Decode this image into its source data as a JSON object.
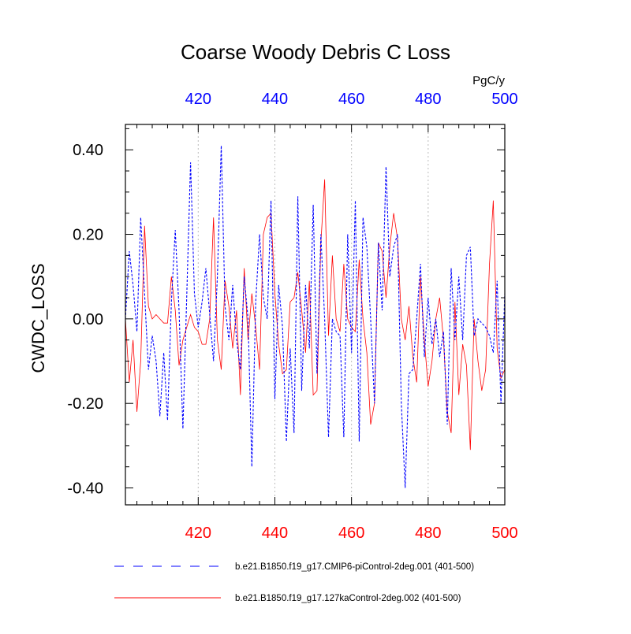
{
  "chart_data": {
    "type": "line",
    "title": "Coarse Woody Debris C Loss",
    "units": "PgC/y",
    "ylabel": "CWDC_LOSS",
    "xlabel": "",
    "xlim": [
      401,
      500
    ],
    "ylim": [
      -0.44,
      0.46
    ],
    "y_ticks": [
      0.4,
      0.2,
      0.0,
      -0.2,
      -0.4
    ],
    "y_tick_labels": [
      "0.40",
      "0.20",
      "0.00",
      "-0.20",
      "-0.40"
    ],
    "x_ticks": [
      420,
      440,
      460,
      480,
      500
    ],
    "x_tick_labels": [
      "420",
      "440",
      "460",
      "480",
      "500"
    ],
    "top_axis_color": "#0000ff",
    "bottom_axis_color": "#ff0000",
    "grid": "vertical dotted at x ticks",
    "legend_position": "bottom",
    "series": [
      {
        "name": "b.e21.B1850.f19_g17.CMIP6-piControl-2deg.001 (401-500)",
        "color": "#0000ff",
        "dash": "dashed",
        "x_start": 401,
        "values": [
          0.0,
          0.16,
          0.08,
          -0.03,
          0.24,
          0.06,
          -0.12,
          -0.04,
          -0.1,
          -0.23,
          -0.08,
          -0.24,
          0.04,
          0.21,
          0.02,
          -0.26,
          0.05,
          0.37,
          0.06,
          -0.02,
          0.04,
          0.12,
          0.01,
          -0.1,
          0.1,
          0.41,
          0.03,
          -0.05,
          0.08,
          -0.05,
          -0.12,
          0.1,
          0.0,
          -0.35,
          0.04,
          0.2,
          0.05,
          0.0,
          0.28,
          -0.19,
          0.08,
          -0.02,
          -0.29,
          -0.07,
          -0.27,
          0.29,
          -0.17,
          0.08,
          -0.07,
          0.27,
          -0.13,
          0.2,
          0.0,
          -0.28,
          0.0,
          -0.03,
          -0.04,
          -0.28,
          0.2,
          -0.08,
          0.28,
          -0.29,
          0.24,
          0.17,
          0.0,
          -0.2,
          0.18,
          0.02,
          0.36,
          0.1,
          0.17,
          0.2,
          -0.2,
          -0.4,
          -0.13,
          -0.12,
          0.0,
          0.13,
          -0.09,
          0.05,
          -0.06,
          0.0,
          -0.09,
          -0.03,
          -0.25,
          0.12,
          -0.05,
          0.1,
          -0.05,
          0.15,
          0.17,
          -0.04,
          0.0,
          -0.01,
          -0.02,
          -0.04,
          -0.08,
          0.09,
          -0.2,
          0.06
        ]
      },
      {
        "name": "b.e21.B1850.f19_g17.127kaControl-2deg.002 (401-500)",
        "color": "#ff0000",
        "dash": "solid",
        "x_start": 401,
        "values": [
          0.0,
          -0.15,
          -0.05,
          -0.22,
          -0.1,
          0.22,
          0.03,
          0.0,
          0.01,
          0.0,
          -0.01,
          -0.01,
          0.1,
          0.02,
          -0.11,
          -0.05,
          -0.02,
          0.01,
          -0.02,
          -0.03,
          -0.06,
          -0.06,
          0.0,
          0.24,
          -0.05,
          -0.12,
          0.09,
          0.03,
          -0.07,
          0.02,
          -0.18,
          0.12,
          -0.05,
          0.06,
          -0.02,
          -0.12,
          0.2,
          0.24,
          0.25,
          0.06,
          -0.06,
          -0.13,
          -0.12,
          0.04,
          0.05,
          0.11,
          0.02,
          -0.08,
          0.09,
          -0.18,
          -0.17,
          0.18,
          0.33,
          -0.04,
          0.15,
          0.0,
          -0.03,
          0.13,
          0.0,
          -0.02,
          -0.03,
          0.14,
          0.0,
          -0.08,
          -0.25,
          -0.2,
          0.18,
          0.16,
          0.05,
          0.17,
          0.25,
          0.19,
          0.0,
          -0.05,
          0.03,
          -0.09,
          -0.15,
          0.1,
          -0.05,
          -0.16,
          -0.1,
          0.0,
          0.05,
          -0.05,
          -0.22,
          -0.27,
          0.04,
          -0.18,
          -0.06,
          -0.11,
          -0.31,
          0.0,
          -0.1,
          -0.17,
          -0.12,
          0.13,
          0.28,
          -0.07,
          -0.14,
          -0.12
        ]
      }
    ]
  }
}
